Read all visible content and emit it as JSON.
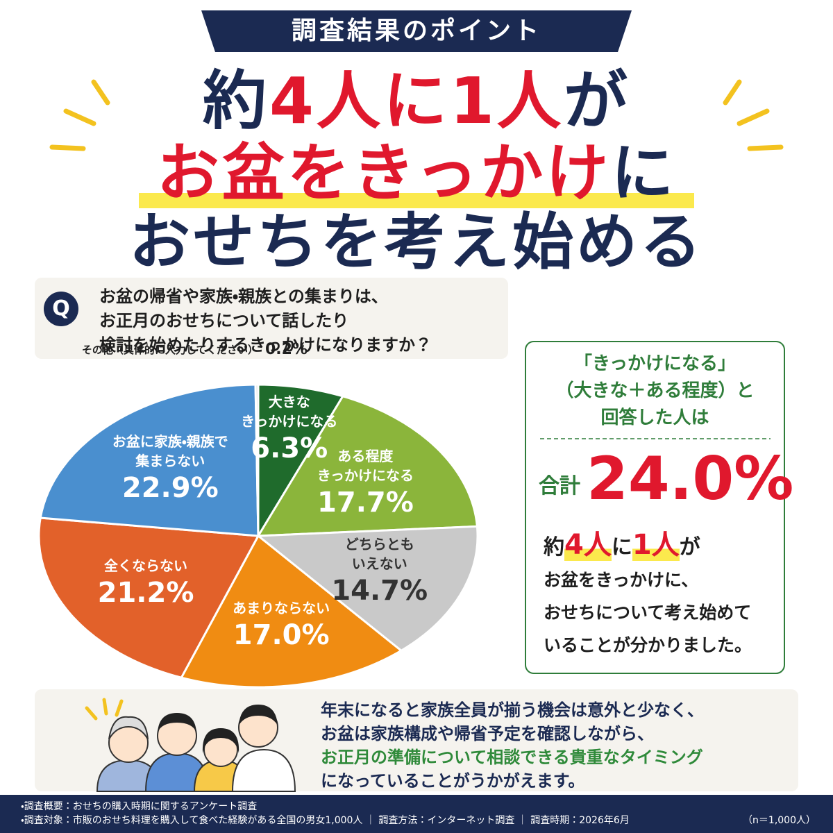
{
  "header": {
    "badge": "調査結果のポイント",
    "headline": [
      [
        {
          "text": "約",
          "color": "#1b2a52"
        },
        {
          "text": "4人に1人",
          "color": "#e0182d"
        },
        {
          "text": "が",
          "color": "#1b2a52"
        }
      ],
      [
        {
          "text": "お盆をきっかけ",
          "color": "#e0182d"
        },
        {
          "text": "に",
          "color": "#1b2a52"
        }
      ],
      [
        {
          "text": "おせちを考え始める",
          "color": "#1b2a52"
        }
      ]
    ]
  },
  "question": {
    "badge": "Q",
    "text": "お盆の帰省や家族・親族との集まりは、\nお正月のおせちについて話したり\n検討を始めたりするきっかけになりますか？"
  },
  "chart_data": {
    "type": "pie",
    "categories": [
      "大きな\nきっかけになる",
      "ある程度\nきっかけになる",
      "どちらとも\nいえない",
      "あまりならない",
      "全くならない",
      "お盆に家族・親族で\n集まらない",
      "その他（具体的に入力してください）"
    ],
    "values": [
      6.3,
      17.7,
      14.7,
      17.0,
      21.2,
      22.9,
      0.2
    ],
    "value_labels": [
      "6.3%",
      "17.7%",
      "14.7%",
      "17.0%",
      "21.2%",
      "22.9%",
      "0.2%"
    ],
    "colors": [
      "#1f6b2c",
      "#8bb53b",
      "#c9c9c9",
      "#f08c12",
      "#e2612a",
      "#4a8fcf",
      "#d8d8d8"
    ]
  },
  "summary": {
    "heading": "「きっかけになる」\n（大きな＋ある程度）と\n回答した人は",
    "total_label": "合計",
    "total": "24.0%",
    "highlight": [
      {
        "text": "約",
        "color": "#1e1e1e"
      },
      {
        "text": "4人",
        "color": "#e0182d"
      },
      {
        "text": "に",
        "color": "#1e1e1e"
      },
      {
        "text": "1人",
        "color": "#e0182d"
      },
      {
        "text": "が",
        "color": "#1e1e1e"
      }
    ],
    "body": "お盆をきっかけに、\nおせちについて考え始めて\nいることが分かりました。"
  },
  "comment": {
    "lines": [
      {
        "text": "年末になると家族全員が揃う機会は意外と少なく、",
        "color": "#1b2a52"
      },
      {
        "text": "お盆は家族構成や帰省予定を確認しながら、",
        "color": "#1b2a52"
      },
      {
        "text": "お正月の準備について相談できる貴重なタイミング",
        "color": "#2f8a3a"
      },
      {
        "text": "になっていることがうかがえます。",
        "color": "#1b2a52"
      }
    ]
  },
  "footer": {
    "notes": [
      "・調査概要：おせちの購入時期に関するアンケート調査",
      "・調査対象：市販のおせち料理を購入して食べた経験がある全国の男女1,000人 ｜ 調査方法：インターネット調査 ｜ 調査時期：2026年6月"
    ],
    "sample": "（n＝1,000人）"
  }
}
